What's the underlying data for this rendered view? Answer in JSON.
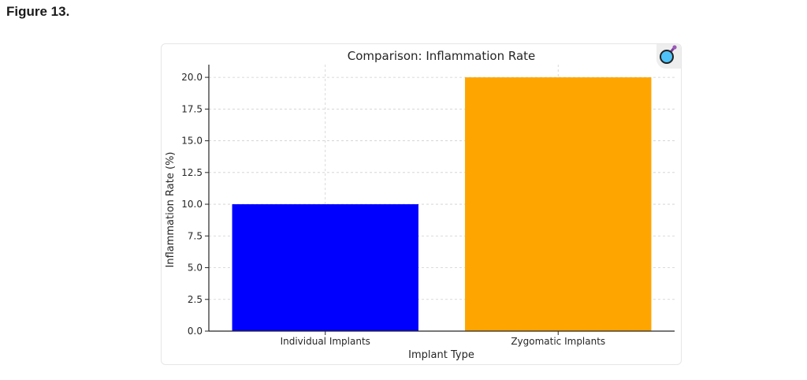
{
  "figure_label": "Figure 13.",
  "chart_data": {
    "type": "bar",
    "title": "Comparison: Inflammation Rate",
    "xlabel": "Implant Type",
    "ylabel": "Inflammation Rate (%)",
    "categories": [
      "Individual Implants",
      "Zygomatic Implants"
    ],
    "values": [
      10.0,
      20.0
    ],
    "colors": [
      "#0000ff",
      "#ffa500"
    ],
    "ylim": [
      0,
      21
    ],
    "yticks": [
      "0.0",
      "2.5",
      "5.0",
      "7.5",
      "10.0",
      "12.5",
      "15.0",
      "17.5",
      "20.0"
    ],
    "grid": true,
    "legend": "none"
  },
  "icon": "magnifier-icon"
}
